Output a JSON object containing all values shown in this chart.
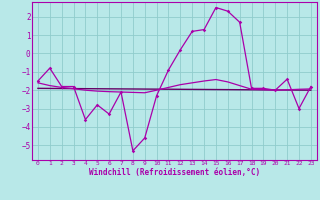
{
  "bg_color": "#b8e8e8",
  "grid_color": "#90cccc",
  "line_color": "#aa00aa",
  "line_color2": "#660066",
  "xlabel": "Windchill (Refroidissement éolien,°C)",
  "xlim": [
    -0.5,
    23.5
  ],
  "ylim": [
    -5.8,
    2.8
  ],
  "yticks": [
    -5,
    -4,
    -3,
    -2,
    -1,
    0,
    1,
    2
  ],
  "xticks": [
    0,
    1,
    2,
    3,
    4,
    5,
    6,
    7,
    8,
    9,
    10,
    11,
    12,
    13,
    14,
    15,
    16,
    17,
    18,
    19,
    20,
    21,
    22,
    23
  ],
  "series1_x": [
    0,
    1,
    2,
    3,
    4,
    5,
    6,
    7,
    8,
    9,
    10,
    11,
    12,
    13,
    14,
    15,
    16,
    17,
    18,
    19,
    20,
    21,
    22,
    23
  ],
  "series1_y": [
    -1.5,
    -0.8,
    -1.8,
    -1.8,
    -3.6,
    -2.8,
    -3.3,
    -2.1,
    -5.3,
    -4.6,
    -2.3,
    -0.9,
    0.2,
    1.2,
    1.3,
    2.5,
    2.3,
    1.7,
    -1.9,
    -1.9,
    -2.0,
    -1.4,
    -3.0,
    -1.8
  ],
  "series2_x": [
    0,
    1,
    2,
    3,
    4,
    5,
    6,
    7,
    8,
    9,
    10,
    11,
    12,
    13,
    14,
    15,
    16,
    17,
    18,
    19,
    20,
    21,
    22,
    23
  ],
  "series2_y": [
    -1.6,
    -1.75,
    -1.85,
    -1.92,
    -2.0,
    -2.05,
    -2.08,
    -2.1,
    -2.12,
    -2.14,
    -2.0,
    -1.85,
    -1.7,
    -1.6,
    -1.5,
    -1.42,
    -1.55,
    -1.75,
    -1.95,
    -1.97,
    -2.0,
    -1.98,
    -1.95,
    -1.93
  ],
  "series3_x": [
    0,
    23
  ],
  "series3_y": [
    -1.9,
    -2.0
  ]
}
